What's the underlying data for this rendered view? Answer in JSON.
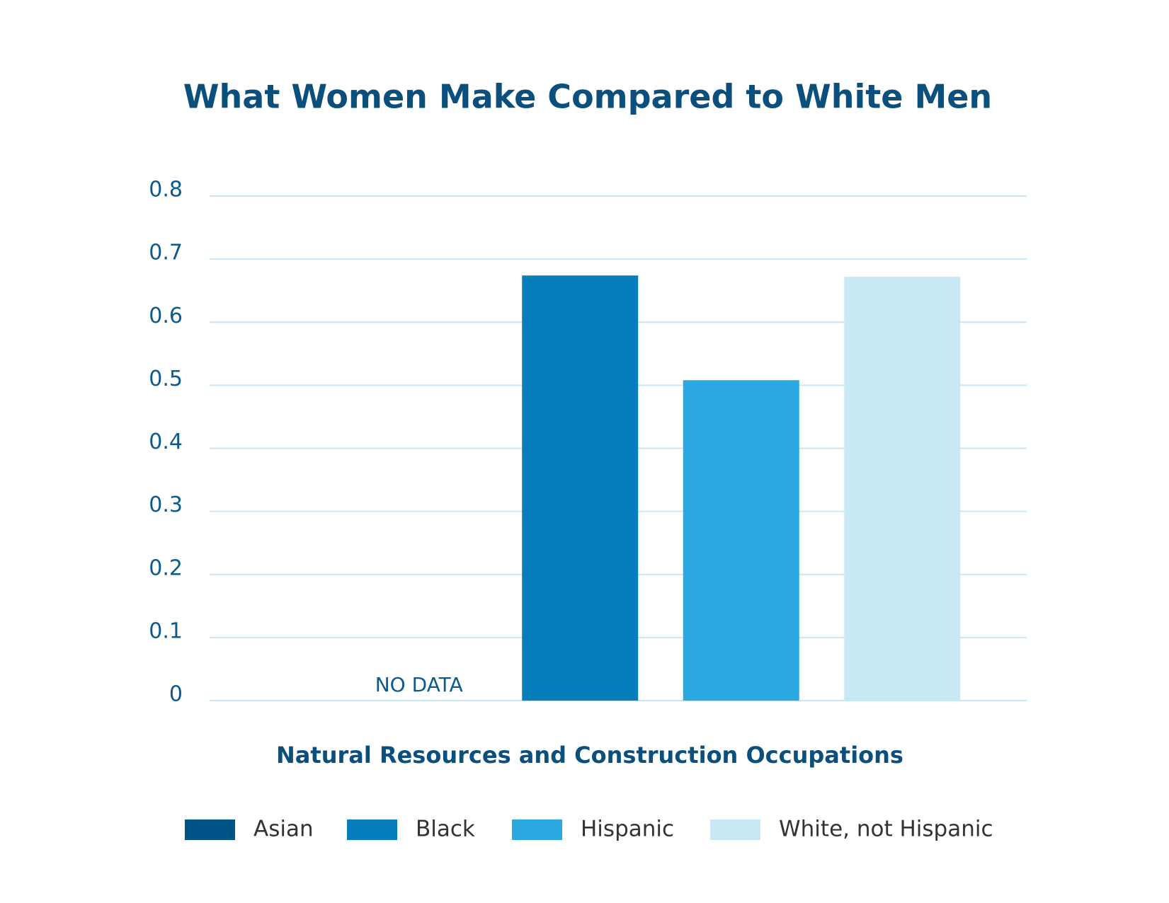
{
  "chart_data": {
    "type": "bar",
    "title": "What Women Make Compared to White Men",
    "categories": [
      "Natural Resources and Construction Occupations"
    ],
    "series": [
      {
        "name": "Asian",
        "color": "#005487",
        "values": [
          null
        ]
      },
      {
        "name": "Black",
        "color": "#077dbb",
        "values": [
          0.674
        ]
      },
      {
        "name": "Hispanic",
        "color": "#2ba8e0",
        "values": [
          0.508
        ]
      },
      {
        "name": "White, not Hispanic",
        "color": "#c8e8f5",
        "values": [
          0.672
        ]
      }
    ],
    "annotations": [
      "NO DATA"
    ],
    "ylim": [
      0,
      0.8
    ],
    "yticks": [
      0,
      0.1,
      0.2,
      0.3,
      0.4,
      0.5,
      0.6,
      0.7,
      0.8
    ],
    "grid": true,
    "legend": "bottom"
  }
}
